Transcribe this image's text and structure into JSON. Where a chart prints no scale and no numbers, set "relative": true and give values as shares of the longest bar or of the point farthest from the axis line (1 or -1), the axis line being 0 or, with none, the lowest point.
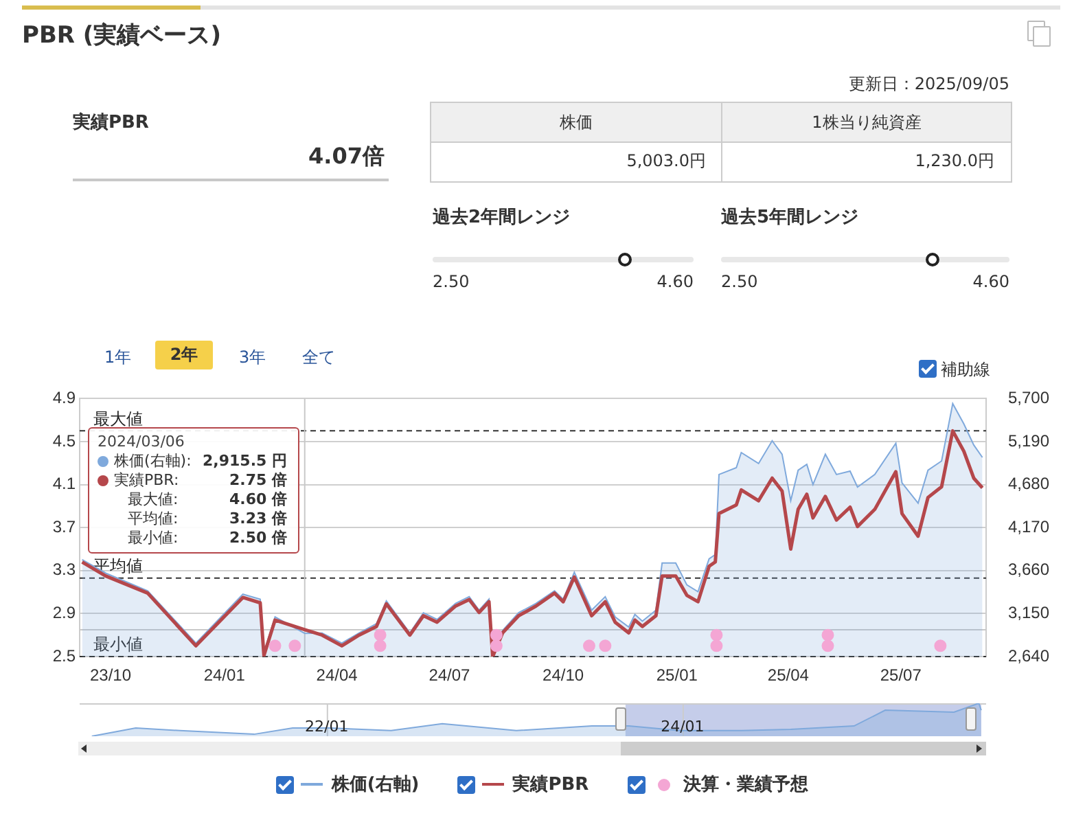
{
  "chart_data": [
    {
      "type": "other",
      "title": "PBR (実績ベース)",
      "annotations": [
        "更新日：2025/09/05",
        "実績PBR",
        "4.07倍",
        "株価",
        "1株当り純資産",
        "5,003.0円",
        "1,230.0円",
        "過去2年間レンジ",
        "2.50",
        "4.60",
        "過去5年間レンジ",
        "2.50",
        "4.60",
        "1年",
        "2年",
        "3年",
        "全て",
        "補助線"
      ]
    },
    {
      "type": "line",
      "grid": "y",
      "legend": "bottom",
      "xlim": [
        "2023-09-06",
        "2025-09-08"
      ],
      "xticks": [
        {
          "value": "2023-10-01",
          "label": "23/10"
        },
        {
          "value": "2024-01-01",
          "label": "24/01"
        },
        {
          "value": "2024-04-01",
          "label": "24/04"
        },
        {
          "value": "2024-07-01",
          "label": "24/07"
        },
        {
          "value": "2024-10-01",
          "label": "24/10"
        },
        {
          "value": "2025-01-01",
          "label": "25/01"
        },
        {
          "value": "2025-04-01",
          "label": "25/04"
        },
        {
          "value": "2025-07-01",
          "label": "25/07"
        }
      ],
      "ylim": [
        2.5,
        4.9
      ],
      "yticks": [
        2.5,
        2.9,
        3.3,
        3.7,
        4.1,
        4.5,
        4.9
      ],
      "y2lim": [
        2640,
        5700
      ],
      "y2ticks": [
        {
          "value": 2640,
          "label": "2,640"
        },
        {
          "value": 3150,
          "label": "3,150"
        },
        {
          "value": 3660,
          "label": "3,660"
        },
        {
          "value": 4170,
          "label": "4,170"
        },
        {
          "value": 4680,
          "label": "4,680"
        },
        {
          "value": 5190,
          "label": "5,190"
        },
        {
          "value": 5700,
          "label": "5,700"
        }
      ],
      "series": [
        {
          "name": "株価(右軸)",
          "type": "area",
          "axis": "y2",
          "color": "#7fa9dc",
          "x": [
            "2023-09-08",
            "2023-09-27",
            "2023-10-31",
            "2023-12-09",
            "2024-01-16",
            "2024-01-30",
            "2024-02-02",
            "2024-02-11",
            "2024-03-06",
            "2024-03-20",
            "2024-04-05",
            "2024-04-19",
            "2024-05-03",
            "2024-05-11",
            "2024-05-30",
            "2024-06-10",
            "2024-06-21",
            "2024-07-06",
            "2024-07-17",
            "2024-07-25",
            "2024-08-02",
            "2024-08-05",
            "2024-08-13",
            "2024-08-26",
            "2024-09-09",
            "2024-09-24",
            "2024-10-01",
            "2024-10-10",
            "2024-10-24",
            "2024-11-04",
            "2024-11-12",
            "2024-11-23",
            "2024-11-28",
            "2024-12-04",
            "2024-12-15",
            "2024-12-20",
            "2024-12-31",
            "2025-01-09",
            "2025-01-18",
            "2025-01-27",
            "2025-02-01",
            "2025-02-04",
            "2025-02-18",
            "2025-02-22",
            "2025-03-08",
            "2025-03-19",
            "2025-03-27",
            "2025-04-03",
            "2025-04-09",
            "2025-04-16",
            "2025-04-21",
            "2025-05-01",
            "2025-05-10",
            "2025-05-21",
            "2025-05-27",
            "2025-06-10",
            "2025-06-27",
            "2025-07-02",
            "2025-07-15",
            "2025-07-23",
            "2025-08-03",
            "2025-08-12",
            "2025-08-21",
            "2025-08-29",
            "2025-09-05"
          ],
          "values": [
            3790,
            3630,
            3420,
            2800,
            3380,
            3320,
            2690,
            3110,
            2915.5,
            2920,
            2800,
            2920,
            3030,
            3300,
            2920,
            3160,
            3080,
            3270,
            3350,
            3190,
            3320,
            2690,
            2950,
            3160,
            3270,
            3420,
            3320,
            3640,
            3190,
            3350,
            3110,
            2990,
            3140,
            3060,
            3190,
            3750,
            3750,
            3490,
            3410,
            3800,
            3850,
            4800,
            4880,
            5060,
            4930,
            5200,
            5040,
            4490,
            4850,
            4920,
            4680,
            5040,
            4800,
            4840,
            4650,
            4800,
            5170,
            4700,
            4460,
            4850,
            4960,
            5640,
            5400,
            5150,
            5003
          ]
        },
        {
          "name": "実績PBR",
          "type": "line",
          "color": "#b5474b",
          "x": [
            "2023-09-08",
            "2023-09-27",
            "2023-10-31",
            "2023-12-09",
            "2024-01-16",
            "2024-01-30",
            "2024-02-02",
            "2024-02-11",
            "2024-03-06",
            "2024-03-20",
            "2024-04-05",
            "2024-04-19",
            "2024-05-03",
            "2024-05-11",
            "2024-05-30",
            "2024-06-10",
            "2024-06-21",
            "2024-07-06",
            "2024-07-17",
            "2024-07-25",
            "2024-08-02",
            "2024-08-05",
            "2024-08-13",
            "2024-08-26",
            "2024-09-09",
            "2024-09-24",
            "2024-10-01",
            "2024-10-10",
            "2024-10-24",
            "2024-11-04",
            "2024-11-12",
            "2024-11-23",
            "2024-11-28",
            "2024-12-04",
            "2024-12-15",
            "2024-12-20",
            "2024-12-31",
            "2025-01-09",
            "2025-01-18",
            "2025-01-27",
            "2025-02-01",
            "2025-02-04",
            "2025-02-18",
            "2025-02-22",
            "2025-03-08",
            "2025-03-19",
            "2025-03-27",
            "2025-04-03",
            "2025-04-09",
            "2025-04-16",
            "2025-04-21",
            "2025-05-01",
            "2025-05-10",
            "2025-05-21",
            "2025-05-27",
            "2025-06-10",
            "2025-06-27",
            "2025-07-02",
            "2025-07-15",
            "2025-07-23",
            "2025-08-03",
            "2025-08-12",
            "2025-08-21",
            "2025-08-29",
            "2025-09-05"
          ],
          "values": [
            3.38,
            3.25,
            3.09,
            2.6,
            3.05,
            3.0,
            2.51,
            2.84,
            2.75,
            2.7,
            2.6,
            2.7,
            2.78,
            2.99,
            2.7,
            2.88,
            2.82,
            2.97,
            3.03,
            2.91,
            3.01,
            2.5,
            2.72,
            2.88,
            2.97,
            3.09,
            3.01,
            3.24,
            2.88,
            3.01,
            2.82,
            2.72,
            2.84,
            2.78,
            2.88,
            3.25,
            3.25,
            3.07,
            3.01,
            3.34,
            3.38,
            3.83,
            3.91,
            4.05,
            3.95,
            4.16,
            4.04,
            3.5,
            3.87,
            4.01,
            3.79,
            3.99,
            3.77,
            3.89,
            3.71,
            3.87,
            4.22,
            3.83,
            3.62,
            3.98,
            4.08,
            4.6,
            4.41,
            4.16,
            4.07
          ]
        },
        {
          "name": "決算・業績予想",
          "type": "scatter",
          "color": "#f4a6d4",
          "x": [
            "2024-02-11",
            "2024-02-27",
            "2024-05-06",
            "2024-05-06",
            "2024-08-08",
            "2024-08-08",
            "2024-10-22",
            "2024-11-04",
            "2025-02-02",
            "2025-02-02",
            "2025-05-03",
            "2025-05-03",
            "2025-08-02"
          ],
          "values": [
            2.6,
            2.6,
            2.7,
            2.6,
            2.7,
            2.6,
            2.6,
            2.6,
            2.7,
            2.6,
            2.7,
            2.6,
            2.6
          ]
        }
      ],
      "ref_lines": [
        {
          "axis": "y",
          "value": 4.6,
          "label": "最大値",
          "color": "#333333",
          "line_style": "dashed"
        },
        {
          "axis": "y",
          "value": 3.23,
          "label": "平均値",
          "color": "#333333",
          "line_style": "dashed"
        },
        {
          "axis": "y",
          "value": 2.5,
          "label": "最小値",
          "color": "#333333",
          "line_style": "dashed"
        },
        {
          "axis": "x",
          "value": "2024-03-06",
          "color": "#c8c8c8",
          "line_style": "solid"
        },
        {
          "axis": "y",
          "value": 2.75,
          "color": "#c8c8c8",
          "line_style": "solid"
        }
      ],
      "annotations": [
        "2024/03/06",
        "株価(右軸):",
        "2,915.5 円",
        "実績PBR:",
        "2.75 倍",
        "最大値:",
        "4.60 倍",
        "平均値:",
        "3.23 倍",
        "最小値:",
        "2.50 倍"
      ]
    },
    {
      "type": "area",
      "relative": true,
      "color": "#7fa9dc",
      "tick_labels": "x",
      "xlim": [
        "2020-08-12",
        "2025-09-15"
      ],
      "xticks": [
        {
          "value": "2022-01-01",
          "label": "22/01"
        },
        {
          "value": "2024-01-01",
          "label": "24/01"
        }
      ],
      "x": [
        "2020-09-06",
        "2020-12-05",
        "2021-03-06",
        "2021-08-05",
        "2021-10-23",
        "2022-01-07",
        "2022-05-13",
        "2022-08-26",
        "2023-01-25",
        "2023-06-29",
        "2023-09-13",
        "2023-12-26",
        "2024-05-01",
        "2024-08-10",
        "2024-12-18",
        "2025-02-20",
        "2025-07-11",
        "2025-08-31",
        "2025-09-05"
      ],
      "values": [
        0,
        0.25,
        0.17,
        0.06,
        0.25,
        0.25,
        0.17,
        0.38,
        0.17,
        0.31,
        0.31,
        0.17,
        0.17,
        0.21,
        0.31,
        0.79,
        0.73,
        1,
        0.79
      ],
      "bands": [
        {
          "axis": "x",
          "from": "2023-09-06",
          "to": "2025-09-05",
          "color": "#c5cdea"
        }
      ]
    }
  ]
}
